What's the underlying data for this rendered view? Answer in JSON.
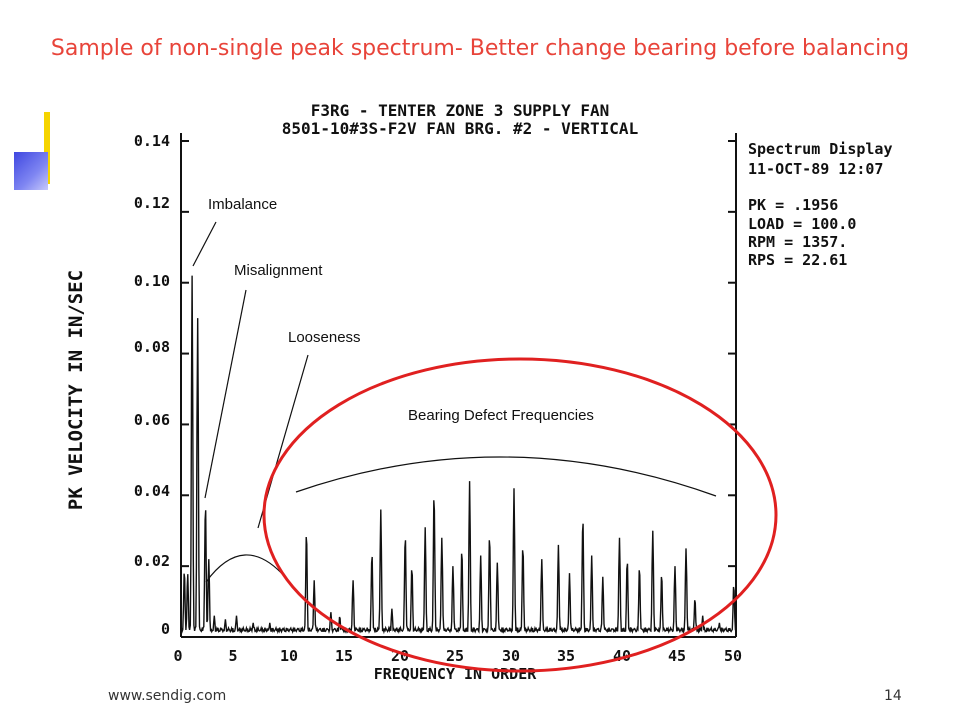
{
  "slide": {
    "title": "Sample of non-single peak spectrum- Better change bearing before balancing",
    "footer_url": "www.sendig.com",
    "page_number": "14"
  },
  "colors": {
    "title": "#e8443a",
    "circle": "#e02020",
    "plot": "#111111"
  },
  "chart_data": {
    "type": "line",
    "title_line1": "F3RG - TENTER ZONE 3 SUPPLY FAN",
    "title_line2": "8501-10#3S-F2V    FAN BRG. #2 - VERTICAL",
    "xlabel": "FREQUENCY IN ORDER",
    "ylabel": "PK VELOCITY IN IN/SEC",
    "xlim": [
      0,
      50
    ],
    "ylim": [
      0,
      0.14
    ],
    "x_ticks": [
      "0",
      "5",
      "10",
      "15",
      "20",
      "25",
      "30",
      "35",
      "40",
      "45",
      "50"
    ],
    "y_ticks": [
      "0",
      "0.02",
      "0.04",
      "0.06",
      "0.08",
      "0.10",
      "0.12",
      "0.14"
    ],
    "info_panel": [
      "Spectrum Display",
      "11-OCT-89  12:07",
      "",
      "PK  =  .1956",
      "LOAD = 100.0",
      "RPM =  1357.",
      "RPS =  22.61"
    ],
    "annotations": [
      "Imbalance",
      "Misalignment",
      "Looseness",
      "Bearing Defect Frequencies"
    ],
    "peaks": [
      {
        "x": 0.3,
        "y": 0.019
      },
      {
        "x": 0.6,
        "y": 0.018
      },
      {
        "x": 1.0,
        "y": 0.102
      },
      {
        "x": 1.5,
        "y": 0.09
      },
      {
        "x": 2.2,
        "y": 0.038
      },
      {
        "x": 2.5,
        "y": 0.022
      },
      {
        "x": 3.0,
        "y": 0.006
      },
      {
        "x": 4.0,
        "y": 0.005
      },
      {
        "x": 5.0,
        "y": 0.006
      },
      {
        "x": 6.5,
        "y": 0.004
      },
      {
        "x": 8.0,
        "y": 0.004
      },
      {
        "x": 11.3,
        "y": 0.03
      },
      {
        "x": 12.0,
        "y": 0.016
      },
      {
        "x": 13.5,
        "y": 0.007
      },
      {
        "x": 14.3,
        "y": 0.006
      },
      {
        "x": 15.5,
        "y": 0.016
      },
      {
        "x": 17.2,
        "y": 0.024
      },
      {
        "x": 18.0,
        "y": 0.036
      },
      {
        "x": 19.0,
        "y": 0.008
      },
      {
        "x": 20.2,
        "y": 0.029
      },
      {
        "x": 20.8,
        "y": 0.02
      },
      {
        "x": 22.0,
        "y": 0.031
      },
      {
        "x": 22.8,
        "y": 0.041
      },
      {
        "x": 23.5,
        "y": 0.028
      },
      {
        "x": 24.5,
        "y": 0.02
      },
      {
        "x": 25.3,
        "y": 0.025
      },
      {
        "x": 26.0,
        "y": 0.044
      },
      {
        "x": 27.0,
        "y": 0.023
      },
      {
        "x": 27.8,
        "y": 0.029
      },
      {
        "x": 28.5,
        "y": 0.021
      },
      {
        "x": 30.0,
        "y": 0.042
      },
      {
        "x": 30.8,
        "y": 0.026
      },
      {
        "x": 32.5,
        "y": 0.022
      },
      {
        "x": 34.0,
        "y": 0.026
      },
      {
        "x": 35.0,
        "y": 0.018
      },
      {
        "x": 36.2,
        "y": 0.034
      },
      {
        "x": 37.0,
        "y": 0.023
      },
      {
        "x": 38.0,
        "y": 0.017
      },
      {
        "x": 39.5,
        "y": 0.028
      },
      {
        "x": 40.2,
        "y": 0.022
      },
      {
        "x": 41.3,
        "y": 0.02
      },
      {
        "x": 42.5,
        "y": 0.03
      },
      {
        "x": 43.3,
        "y": 0.018
      },
      {
        "x": 44.5,
        "y": 0.02
      },
      {
        "x": 45.5,
        "y": 0.025
      },
      {
        "x": 46.3,
        "y": 0.011
      },
      {
        "x": 47.0,
        "y": 0.006
      },
      {
        "x": 48.5,
        "y": 0.004
      },
      {
        "x": 49.8,
        "y": 0.015
      }
    ],
    "grid": false,
    "legend": "none"
  }
}
